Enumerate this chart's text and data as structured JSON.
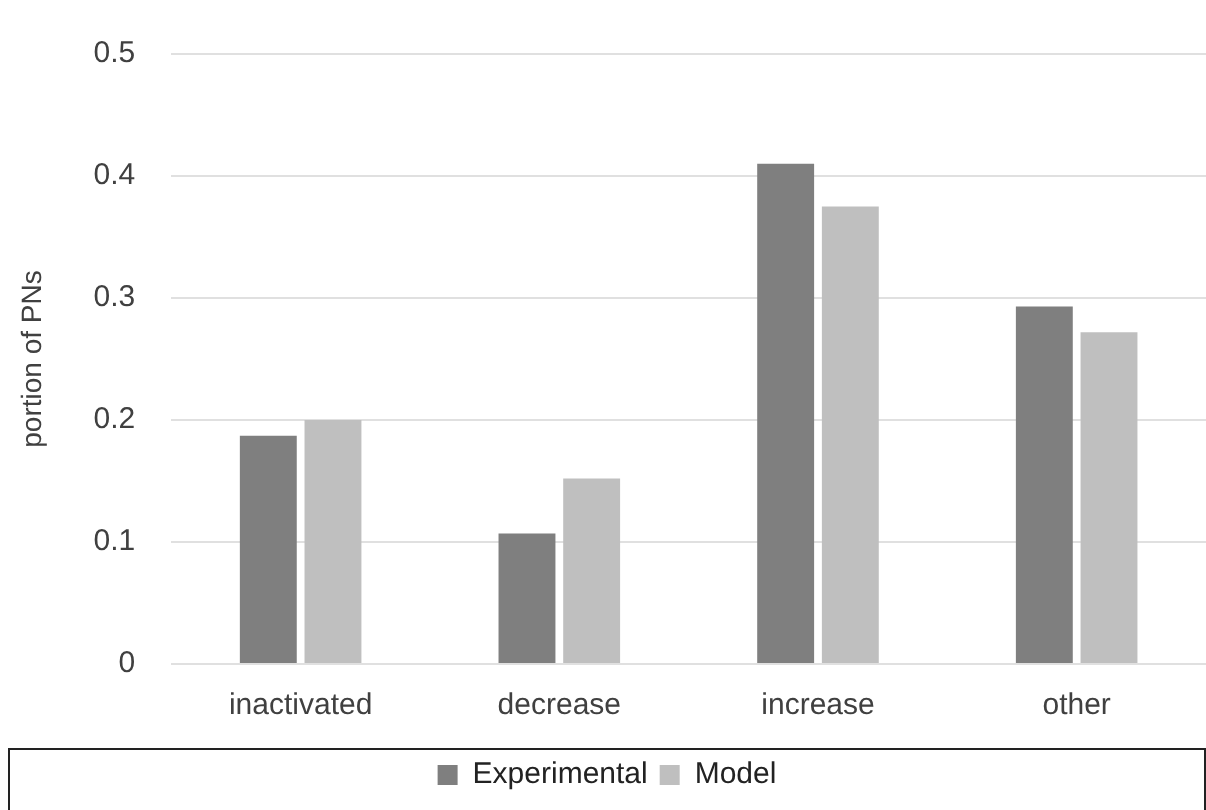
{
  "chart_data": {
    "type": "bar",
    "ylabel": "portion of PNs",
    "categories": [
      "inactivated",
      "decrease",
      "increase",
      "other"
    ],
    "series": [
      {
        "name": "Experimental",
        "color": "#7f7f7f",
        "values": [
          0.187,
          0.107,
          0.41,
          0.293
        ]
      },
      {
        "name": "Model",
        "color": "#bfbfbf",
        "values": [
          0.2,
          0.152,
          0.375,
          0.272
        ]
      }
    ],
    "ylim": [
      0,
      0.5
    ],
    "yticks": [
      0,
      0.1,
      0.2,
      0.3,
      0.4,
      0.5
    ],
    "grid": "y",
    "legend": "bottom"
  }
}
